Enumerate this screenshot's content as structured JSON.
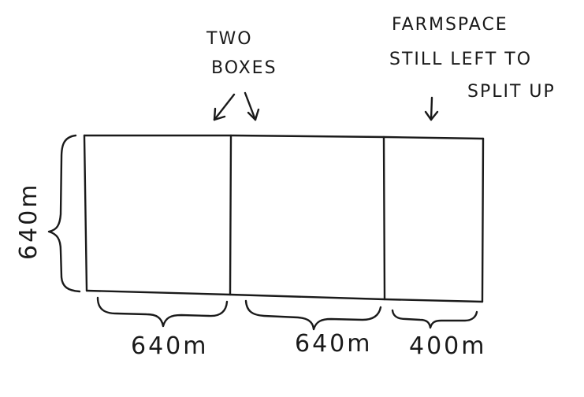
{
  "annotations": {
    "two_boxes_line1": "TWO",
    "two_boxes_line2": "BOXES",
    "farmspace_line1": "FARMSPACE",
    "farmspace_line2": "STILL LEFT TO",
    "farmspace_line3": "SPLIT UP"
  },
  "dimensions": {
    "height": "640m",
    "box1_width": "640m",
    "box2_width": "640m",
    "remaining_width": "400m"
  },
  "colors": {
    "ink": "#1a1a1a",
    "background": "#ffffff"
  }
}
